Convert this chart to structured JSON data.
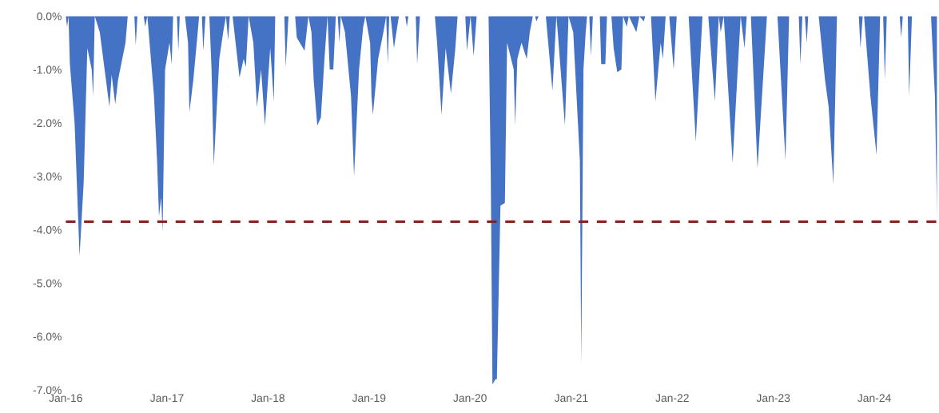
{
  "chart_data": {
    "type": "area",
    "x": [
      "2016-01-01",
      "2016-01-06",
      "2016-01-11",
      "2016-01-16",
      "2016-02-02",
      "2016-02-20",
      "2016-03-06",
      "2016-03-19",
      "2016-04-04",
      "2016-04-09",
      "2016-04-15",
      "2016-05-03",
      "2016-06-07",
      "2016-06-15",
      "2016-06-28",
      "2016-07-08",
      "2016-08-04",
      "2016-08-12",
      "2016-09-05",
      "2016-09-10",
      "2016-09-16",
      "2016-10-09",
      "2016-10-14",
      "2016-10-22",
      "2016-11-15",
      "2016-11-26",
      "2016-12-03",
      "2016-12-11",
      "2016-12-16",
      "2016-12-25",
      "2017-01-10",
      "2017-01-18",
      "2017-01-23",
      "2017-02-06",
      "2017-02-11",
      "2017-02-16",
      "2017-03-07",
      "2017-03-18",
      "2017-03-23",
      "2017-04-06",
      "2017-04-22",
      "2017-04-27",
      "2017-05-07",
      "2017-05-12",
      "2017-05-20",
      "2017-06-03",
      "2017-06-11",
      "2017-06-19",
      "2017-07-09",
      "2017-07-23",
      "2017-08-02",
      "2017-08-10",
      "2017-08-16",
      "2017-08-26",
      "2017-09-20",
      "2017-10-05",
      "2017-10-13",
      "2017-10-23",
      "2017-11-09",
      "2017-11-22",
      "2017-12-07",
      "2017-12-21",
      "2018-01-01",
      "2018-01-09",
      "2018-01-22",
      "2018-01-27",
      "2018-03-01",
      "2018-03-06",
      "2018-03-16",
      "2018-04-09",
      "2018-04-15",
      "2018-05-13",
      "2018-05-27",
      "2018-06-07",
      "2018-06-15",
      "2018-06-28",
      "2018-07-11",
      "2018-07-24",
      "2018-08-04",
      "2018-08-12",
      "2018-08-25",
      "2018-09-03",
      "2018-09-10",
      "2018-09-16",
      "2018-09-21",
      "2018-10-06",
      "2018-10-28",
      "2018-11-08",
      "2018-11-26",
      "2018-12-11",
      "2018-12-19",
      "2019-01-05",
      "2019-01-10",
      "2019-01-15",
      "2019-02-03",
      "2019-02-22",
      "2019-03-04",
      "2019-03-10",
      "2019-03-15",
      "2019-03-20",
      "2019-04-01",
      "2019-04-19",
      "2019-05-12",
      "2019-05-18",
      "2019-05-23",
      "2019-06-19",
      "2019-06-24",
      "2019-07-04",
      "2019-08-27",
      "2019-09-04",
      "2019-09-20",
      "2019-10-05",
      "2019-10-24",
      "2019-11-09",
      "2019-11-17",
      "2019-12-15",
      "2019-12-21",
      "2020-01-03",
      "2020-01-14",
      "2020-01-25",
      "2020-03-08",
      "2020-03-16",
      "2020-03-22",
      "2020-04-02",
      "2020-04-07",
      "2020-04-20",
      "2020-05-06",
      "2020-05-14",
      "2020-06-07",
      "2020-06-12",
      "2020-06-20",
      "2020-07-05",
      "2020-07-24",
      "2020-08-04",
      "2020-08-15",
      "2020-08-23",
      "2020-08-28",
      "2020-09-05",
      "2020-10-01",
      "2020-10-25",
      "2020-11-08",
      "2020-11-13",
      "2020-12-09",
      "2020-12-22",
      "2021-01-08",
      "2021-02-01",
      "2021-02-06",
      "2021-02-14",
      "2021-02-22",
      "2021-02-27",
      "2021-03-07",
      "2021-03-13",
      "2021-03-20",
      "2021-04-14",
      "2021-04-19",
      "2021-05-04",
      "2021-05-10",
      "2021-05-26",
      "2021-06-03",
      "2021-06-16",
      "2021-07-01",
      "2021-07-07",
      "2021-07-20",
      "2021-07-28",
      "2021-08-24",
      "2021-09-04",
      "2021-09-20",
      "2021-09-25",
      "2021-10-16",
      "2021-11-01",
      "2021-11-20",
      "2021-11-28",
      "2021-12-08",
      "2021-12-21",
      "2022-01-06",
      "2022-01-17",
      "2022-03-01",
      "2022-03-27",
      "2022-04-20",
      "2022-05-11",
      "2022-06-04",
      "2022-06-18",
      "2022-06-25",
      "2022-07-06",
      "2022-08-07",
      "2022-09-05",
      "2022-09-19",
      "2022-09-27",
      "2022-10-12",
      "2022-11-05",
      "2022-12-09",
      "2023-01-16",
      "2023-02-14",
      "2023-02-27",
      "2023-04-03",
      "2023-04-09",
      "2023-04-16",
      "2023-04-25",
      "2023-05-02",
      "2023-05-07",
      "2023-06-14",
      "2023-07-07",
      "2023-07-20",
      "2023-08-06",
      "2023-08-19",
      "2023-11-06",
      "2023-11-12",
      "2023-11-20",
      "2023-11-25",
      "2023-12-18",
      "2024-01-09",
      "2024-01-22",
      "2024-02-02",
      "2024-02-08",
      "2024-02-15",
      "2024-04-02",
      "2024-04-07",
      "2024-04-13",
      "2024-05-01",
      "2024-05-06",
      "2024-05-16",
      "2024-07-24",
      "2024-08-07",
      "2024-08-15"
    ],
    "series": [
      {
        "color": "#4472c4",
        "values": [
          0,
          -0.2,
          0,
          -0.9,
          -2.0,
          -4.5,
          -3.1,
          -0.6,
          -1.0,
          -1.5,
          0,
          -0.3,
          -1.7,
          -1.1,
          -1.65,
          -1.2,
          -0.5,
          0,
          0,
          -0.55,
          0,
          0,
          -0.2,
          0,
          -1.5,
          -2.7,
          -3.75,
          -3.4,
          -4.05,
          -1.0,
          -0.5,
          -0.9,
          0,
          0,
          -0.65,
          0,
          0,
          -0.5,
          -1.8,
          -1.2,
          -0.3,
          0,
          0,
          -0.65,
          0,
          0,
          -1.0,
          -2.8,
          -0.8,
          -0.3,
          0,
          -0.45,
          0,
          0,
          -1.15,
          -0.8,
          -0.95,
          0,
          -0.5,
          -1.7,
          -1.0,
          -2.05,
          -1.2,
          -0.6,
          -1.6,
          0,
          0,
          -0.95,
          0,
          0,
          -0.4,
          -0.65,
          0,
          -0.3,
          -1.2,
          -2.05,
          -1.9,
          -0.8,
          0,
          -1.0,
          -1.0,
          0,
          0,
          -0.5,
          0,
          -0.3,
          -1.5,
          -3.0,
          -1.0,
          -0.2,
          0,
          -0.5,
          -1.5,
          -1.85,
          -0.8,
          -0.3,
          0,
          -0.9,
          0,
          0,
          -0.6,
          0,
          0,
          -0.2,
          0,
          0,
          -0.9,
          0,
          0,
          -0.5,
          -1.85,
          -0.6,
          -1.45,
          -0.6,
          0,
          0,
          -0.65,
          0,
          -0.75,
          0,
          0,
          -3.0,
          -6.9,
          -6.8,
          -6.8,
          -3.55,
          -3.5,
          -0.5,
          -1.0,
          -2.05,
          -0.8,
          -0.5,
          -0.8,
          -0.3,
          0,
          0,
          -0.1,
          0,
          0,
          -1.4,
          0,
          -0.3,
          -2.05,
          0,
          -0.3,
          -2.7,
          -6.5,
          -1.0,
          -0.3,
          0,
          0,
          -0.75,
          0,
          0,
          -0.9,
          -0.9,
          0,
          0,
          -0.6,
          -1.05,
          -1.0,
          0,
          -0.2,
          0,
          -0.3,
          0,
          -0.1,
          0,
          0,
          -1.6,
          -0.5,
          -0.8,
          0,
          0,
          -1.0,
          0,
          0,
          -2.35,
          0,
          0,
          -1.6,
          0,
          -0.3,
          0,
          -2.75,
          0,
          -0.6,
          0,
          0,
          -2.85,
          0,
          0,
          -2.7,
          0,
          0,
          -0.9,
          0,
          0,
          -0.5,
          0,
          0,
          -1.2,
          -1.7,
          -3.15,
          0,
          0,
          -0.6,
          0,
          0,
          -1.5,
          -2.6,
          0,
          0,
          -1.2,
          0,
          0,
          -0.4,
          0,
          0,
          -1.5,
          0,
          0,
          -1.5,
          -3.8
        ]
      }
    ],
    "xlim": [
      "2016-01-01",
      "2024-08-15"
    ],
    "xticks": [
      {
        "value": "2016-01-01",
        "label": "Jan-16"
      },
      {
        "value": "2017-01-01",
        "label": "Jan-17"
      },
      {
        "value": "2018-01-01",
        "label": "Jan-18"
      },
      {
        "value": "2019-01-01",
        "label": "Jan-19"
      },
      {
        "value": "2020-01-01",
        "label": "Jan-20"
      },
      {
        "value": "2021-01-01",
        "label": "Jan-21"
      },
      {
        "value": "2022-01-01",
        "label": "Jan-22"
      },
      {
        "value": "2023-01-01",
        "label": "Jan-23"
      },
      {
        "value": "2024-01-01",
        "label": "Jan-24"
      }
    ],
    "ylim": [
      -7,
      0
    ],
    "yticks": [
      {
        "value": 0,
        "label": "0.0%"
      },
      {
        "value": -1,
        "label": "-1.0%"
      },
      {
        "value": -2,
        "label": "-2.0%"
      },
      {
        "value": -3,
        "label": "-3.0%"
      },
      {
        "value": -4,
        "label": "-4.0%"
      },
      {
        "value": -5,
        "label": "-5.0%"
      },
      {
        "value": -6,
        "label": "-6.0%"
      },
      {
        "value": -7,
        "label": "-7.0%"
      }
    ],
    "ref_lines": [
      {
        "axis": "y",
        "value": -3.85,
        "color": "#a31515",
        "line_style": "dashed"
      }
    ]
  }
}
